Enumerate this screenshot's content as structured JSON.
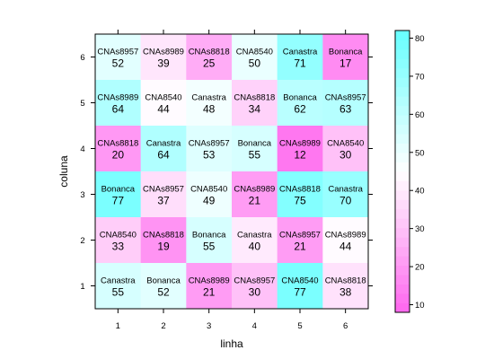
{
  "chart_data": {
    "type": "heatmap",
    "xlabel": "linha",
    "ylabel": "coluna",
    "x_ticks": [
      "1",
      "2",
      "3",
      "4",
      "5",
      "6"
    ],
    "y_ticks": [
      "1",
      "2",
      "3",
      "4",
      "5",
      "6"
    ],
    "colorbar": {
      "ticks": [
        "10",
        "20",
        "30",
        "40",
        "50",
        "60",
        "70",
        "80"
      ],
      "range": [
        8,
        82
      ],
      "low_color": "#ff66ee",
      "mid_color": "#ffffff",
      "high_color": "#66ffff"
    },
    "cells": [
      {
        "row": 6,
        "col": 1,
        "label": "CNAs8957",
        "value": 52
      },
      {
        "row": 6,
        "col": 2,
        "label": "CNAs8989",
        "value": 39
      },
      {
        "row": 6,
        "col": 3,
        "label": "CNAs8818",
        "value": 25
      },
      {
        "row": 6,
        "col": 4,
        "label": "CNA8540",
        "value": 50
      },
      {
        "row": 6,
        "col": 5,
        "label": "Canastra",
        "value": 71
      },
      {
        "row": 6,
        "col": 6,
        "label": "Bonanca",
        "value": 17
      },
      {
        "row": 5,
        "col": 1,
        "label": "CNAs8989",
        "value": 64
      },
      {
        "row": 5,
        "col": 2,
        "label": "CNA8540",
        "value": 44
      },
      {
        "row": 5,
        "col": 3,
        "label": "Canastra",
        "value": 48
      },
      {
        "row": 5,
        "col": 4,
        "label": "CNAs8818",
        "value": 34
      },
      {
        "row": 5,
        "col": 5,
        "label": "Bonanca",
        "value": 62
      },
      {
        "row": 5,
        "col": 6,
        "label": "CNAs8957",
        "value": 63
      },
      {
        "row": 4,
        "col": 1,
        "label": "CNAs8818",
        "value": 20
      },
      {
        "row": 4,
        "col": 2,
        "label": "Canastra",
        "value": 64
      },
      {
        "row": 4,
        "col": 3,
        "label": "CNAs8957",
        "value": 53
      },
      {
        "row": 4,
        "col": 4,
        "label": "Bonanca",
        "value": 55
      },
      {
        "row": 4,
        "col": 5,
        "label": "CNAs8989",
        "value": 12
      },
      {
        "row": 4,
        "col": 6,
        "label": "CNA8540",
        "value": 30
      },
      {
        "row": 3,
        "col": 1,
        "label": "Bonanca",
        "value": 77
      },
      {
        "row": 3,
        "col": 2,
        "label": "CNAs8957",
        "value": 37
      },
      {
        "row": 3,
        "col": 3,
        "label": "CNA8540",
        "value": 49
      },
      {
        "row": 3,
        "col": 4,
        "label": "CNAs8989",
        "value": 21
      },
      {
        "row": 3,
        "col": 5,
        "label": "CNAs8818",
        "value": 75
      },
      {
        "row": 3,
        "col": 6,
        "label": "Canastra",
        "value": 70
      },
      {
        "row": 2,
        "col": 1,
        "label": "CNA8540",
        "value": 33
      },
      {
        "row": 2,
        "col": 2,
        "label": "CNAs8818",
        "value": 19
      },
      {
        "row": 2,
        "col": 3,
        "label": "Bonanca",
        "value": 55
      },
      {
        "row": 2,
        "col": 4,
        "label": "Canastra",
        "value": 40
      },
      {
        "row": 2,
        "col": 5,
        "label": "CNAs8957",
        "value": 21
      },
      {
        "row": 2,
        "col": 6,
        "label": "CNAs8989",
        "value": 44
      },
      {
        "row": 1,
        "col": 1,
        "label": "Canastra",
        "value": 55
      },
      {
        "row": 1,
        "col": 2,
        "label": "Bonanca",
        "value": 52
      },
      {
        "row": 1,
        "col": 3,
        "label": "CNAs8989",
        "value": 21
      },
      {
        "row": 1,
        "col": 4,
        "label": "CNAs8957",
        "value": 30
      },
      {
        "row": 1,
        "col": 5,
        "label": "CNA8540",
        "value": 77
      },
      {
        "row": 1,
        "col": 6,
        "label": "CNAs8818",
        "value": 38
      }
    ]
  }
}
